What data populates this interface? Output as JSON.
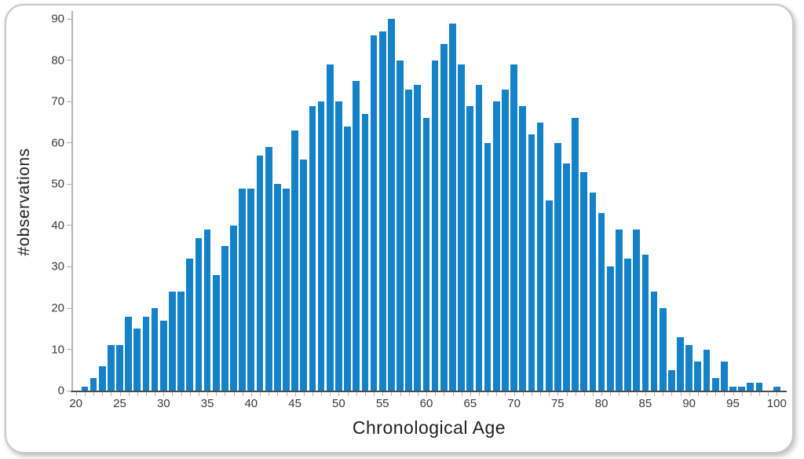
{
  "chart_data": {
    "type": "bar",
    "title": "",
    "xlabel": "Chronological Age",
    "ylabel": "#observations",
    "categories": [
      21,
      22,
      23,
      24,
      25,
      26,
      27,
      28,
      29,
      30,
      31,
      32,
      33,
      34,
      35,
      36,
      37,
      38,
      39,
      40,
      41,
      42,
      43,
      44,
      45,
      46,
      47,
      48,
      49,
      50,
      51,
      52,
      53,
      54,
      55,
      56,
      57,
      58,
      59,
      60,
      61,
      62,
      63,
      64,
      65,
      66,
      67,
      68,
      69,
      70,
      71,
      72,
      73,
      74,
      75,
      76,
      77,
      78,
      79,
      80,
      81,
      82,
      83,
      84,
      85,
      86,
      87,
      88,
      89,
      90,
      91,
      92,
      93,
      94,
      95,
      96,
      97,
      98,
      99,
      100
    ],
    "values": [
      1,
      3,
      6,
      11,
      11,
      18,
      15,
      18,
      20,
      17,
      24,
      24,
      32,
      37,
      39,
      28,
      35,
      40,
      49,
      49,
      57,
      59,
      50,
      49,
      63,
      56,
      69,
      70,
      79,
      70,
      64,
      75,
      67,
      86,
      87,
      90,
      80,
      73,
      74,
      66,
      80,
      84,
      89,
      79,
      69,
      74,
      60,
      70,
      73,
      79,
      69,
      62,
      65,
      46,
      60,
      55,
      66,
      53,
      48,
      43,
      30,
      39,
      32,
      39,
      33,
      24,
      20,
      5,
      13,
      11,
      7,
      10,
      3,
      7,
      1,
      1,
      2,
      2,
      0,
      1
    ],
    "x_ticks": [
      20,
      25,
      30,
      35,
      40,
      45,
      50,
      55,
      60,
      65,
      70,
      75,
      80,
      85,
      90,
      95,
      100
    ],
    "y_ticks": [
      0,
      10,
      20,
      30,
      40,
      50,
      60,
      70,
      80,
      90
    ],
    "xlim": [
      20,
      100.5
    ],
    "ylim": [
      0,
      90
    ],
    "grid": false,
    "legend": "none",
    "bar_color": "#1482c8",
    "x_axis_color": "#4d4d4d",
    "y_axis_color": "#b5b5b5"
  }
}
